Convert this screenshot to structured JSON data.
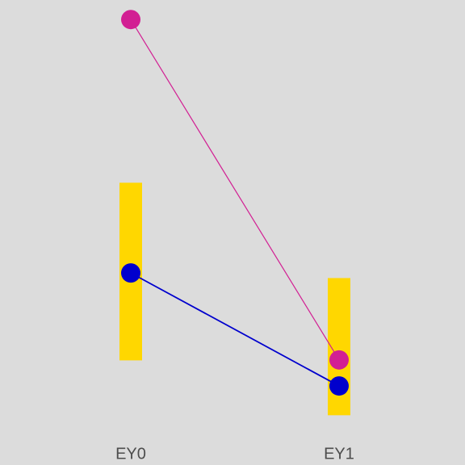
{
  "chart_data": {
    "type": "line",
    "categories": [
      "EY0",
      "EY1"
    ],
    "ylim": [
      0,
      1
    ],
    "colors": {
      "background": "#dcdcdc",
      "range_bar": "#ffd700",
      "tick_label": "#4d4d4d"
    },
    "ranges": [
      {
        "category": "EY0",
        "low": 0.225,
        "high": 0.607
      },
      {
        "category": "EY1",
        "low": 0.107,
        "high": 0.402
      }
    ],
    "series": [
      {
        "color": "#d21f93",
        "values": [
          0.958,
          0.226
        ]
      },
      {
        "color": "#0000cd",
        "values": [
          0.413,
          0.17
        ]
      }
    ],
    "grid": false
  }
}
